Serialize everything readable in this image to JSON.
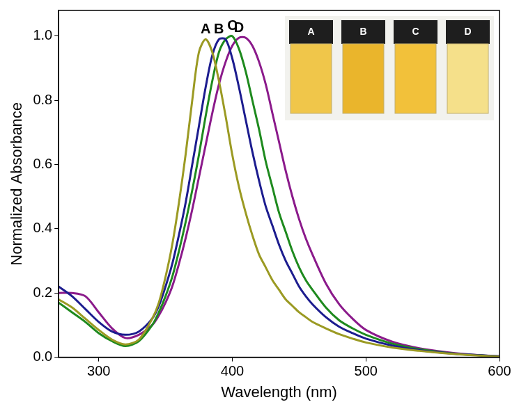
{
  "chart_data": {
    "type": "line",
    "x_label": "Wavelength (nm)",
    "y_label": "Normalized Absorbance",
    "xlim": [
      270,
      600
    ],
    "xticks": [
      300,
      400,
      500,
      600
    ],
    "ylim": [
      0,
      1.08
    ],
    "yticks": [
      {
        "value": 0,
        "label": "0.0"
      },
      0.2,
      0.4,
      0.6,
      0.8,
      {
        "value": 1,
        "label": "1.0"
      }
    ],
    "grid": false,
    "marker": "none",
    "x": [
      270,
      280,
      290,
      300,
      310,
      320,
      330,
      340,
      345,
      350,
      355,
      360,
      365,
      370,
      375,
      380,
      385,
      390,
      395,
      400,
      405,
      410,
      415,
      420,
      425,
      430,
      435,
      440,
      445,
      450,
      455,
      460,
      470,
      480,
      490,
      500,
      520,
      540,
      560,
      580,
      600
    ],
    "series": [
      {
        "name": "A",
        "color": "#9b9a23",
        "values": [
          0.18,
          0.155,
          0.12,
          0.085,
          0.055,
          0.04,
          0.055,
          0.12,
          0.17,
          0.25,
          0.35,
          0.48,
          0.63,
          0.8,
          0.95,
          0.99,
          0.95,
          0.86,
          0.75,
          0.63,
          0.53,
          0.45,
          0.38,
          0.32,
          0.28,
          0.24,
          0.21,
          0.18,
          0.16,
          0.14,
          0.125,
          0.11,
          0.09,
          0.072,
          0.058,
          0.046,
          0.03,
          0.02,
          0.012,
          0.006,
          0.002
        ]
      },
      {
        "name": "B",
        "color": "#1c1c8f",
        "values": [
          0.22,
          0.19,
          0.15,
          0.11,
          0.08,
          0.07,
          0.08,
          0.12,
          0.16,
          0.22,
          0.29,
          0.38,
          0.48,
          0.6,
          0.72,
          0.84,
          0.94,
          0.99,
          0.99,
          0.93,
          0.84,
          0.74,
          0.64,
          0.55,
          0.47,
          0.41,
          0.35,
          0.3,
          0.26,
          0.22,
          0.19,
          0.165,
          0.125,
          0.095,
          0.075,
          0.058,
          0.036,
          0.022,
          0.013,
          0.007,
          0.003
        ]
      },
      {
        "name": "C",
        "color": "#1e8a1e",
        "values": [
          0.17,
          0.14,
          0.11,
          0.075,
          0.05,
          0.035,
          0.05,
          0.1,
          0.14,
          0.19,
          0.25,
          0.33,
          0.42,
          0.52,
          0.63,
          0.75,
          0.86,
          0.95,
          0.99,
          1.0,
          0.96,
          0.89,
          0.8,
          0.71,
          0.61,
          0.53,
          0.45,
          0.39,
          0.33,
          0.28,
          0.24,
          0.21,
          0.155,
          0.115,
          0.09,
          0.07,
          0.042,
          0.025,
          0.014,
          0.007,
          0.003
        ]
      },
      {
        "name": "D",
        "color": "#8b1a8b",
        "values": [
          0.2,
          0.2,
          0.19,
          0.14,
          0.09,
          0.06,
          0.07,
          0.1,
          0.13,
          0.17,
          0.22,
          0.29,
          0.37,
          0.46,
          0.56,
          0.66,
          0.76,
          0.85,
          0.92,
          0.97,
          0.995,
          0.995,
          0.97,
          0.92,
          0.85,
          0.76,
          0.67,
          0.58,
          0.5,
          0.43,
          0.37,
          0.32,
          0.23,
          0.165,
          0.12,
          0.085,
          0.048,
          0.028,
          0.016,
          0.008,
          0.003
        ]
      }
    ]
  }
}
